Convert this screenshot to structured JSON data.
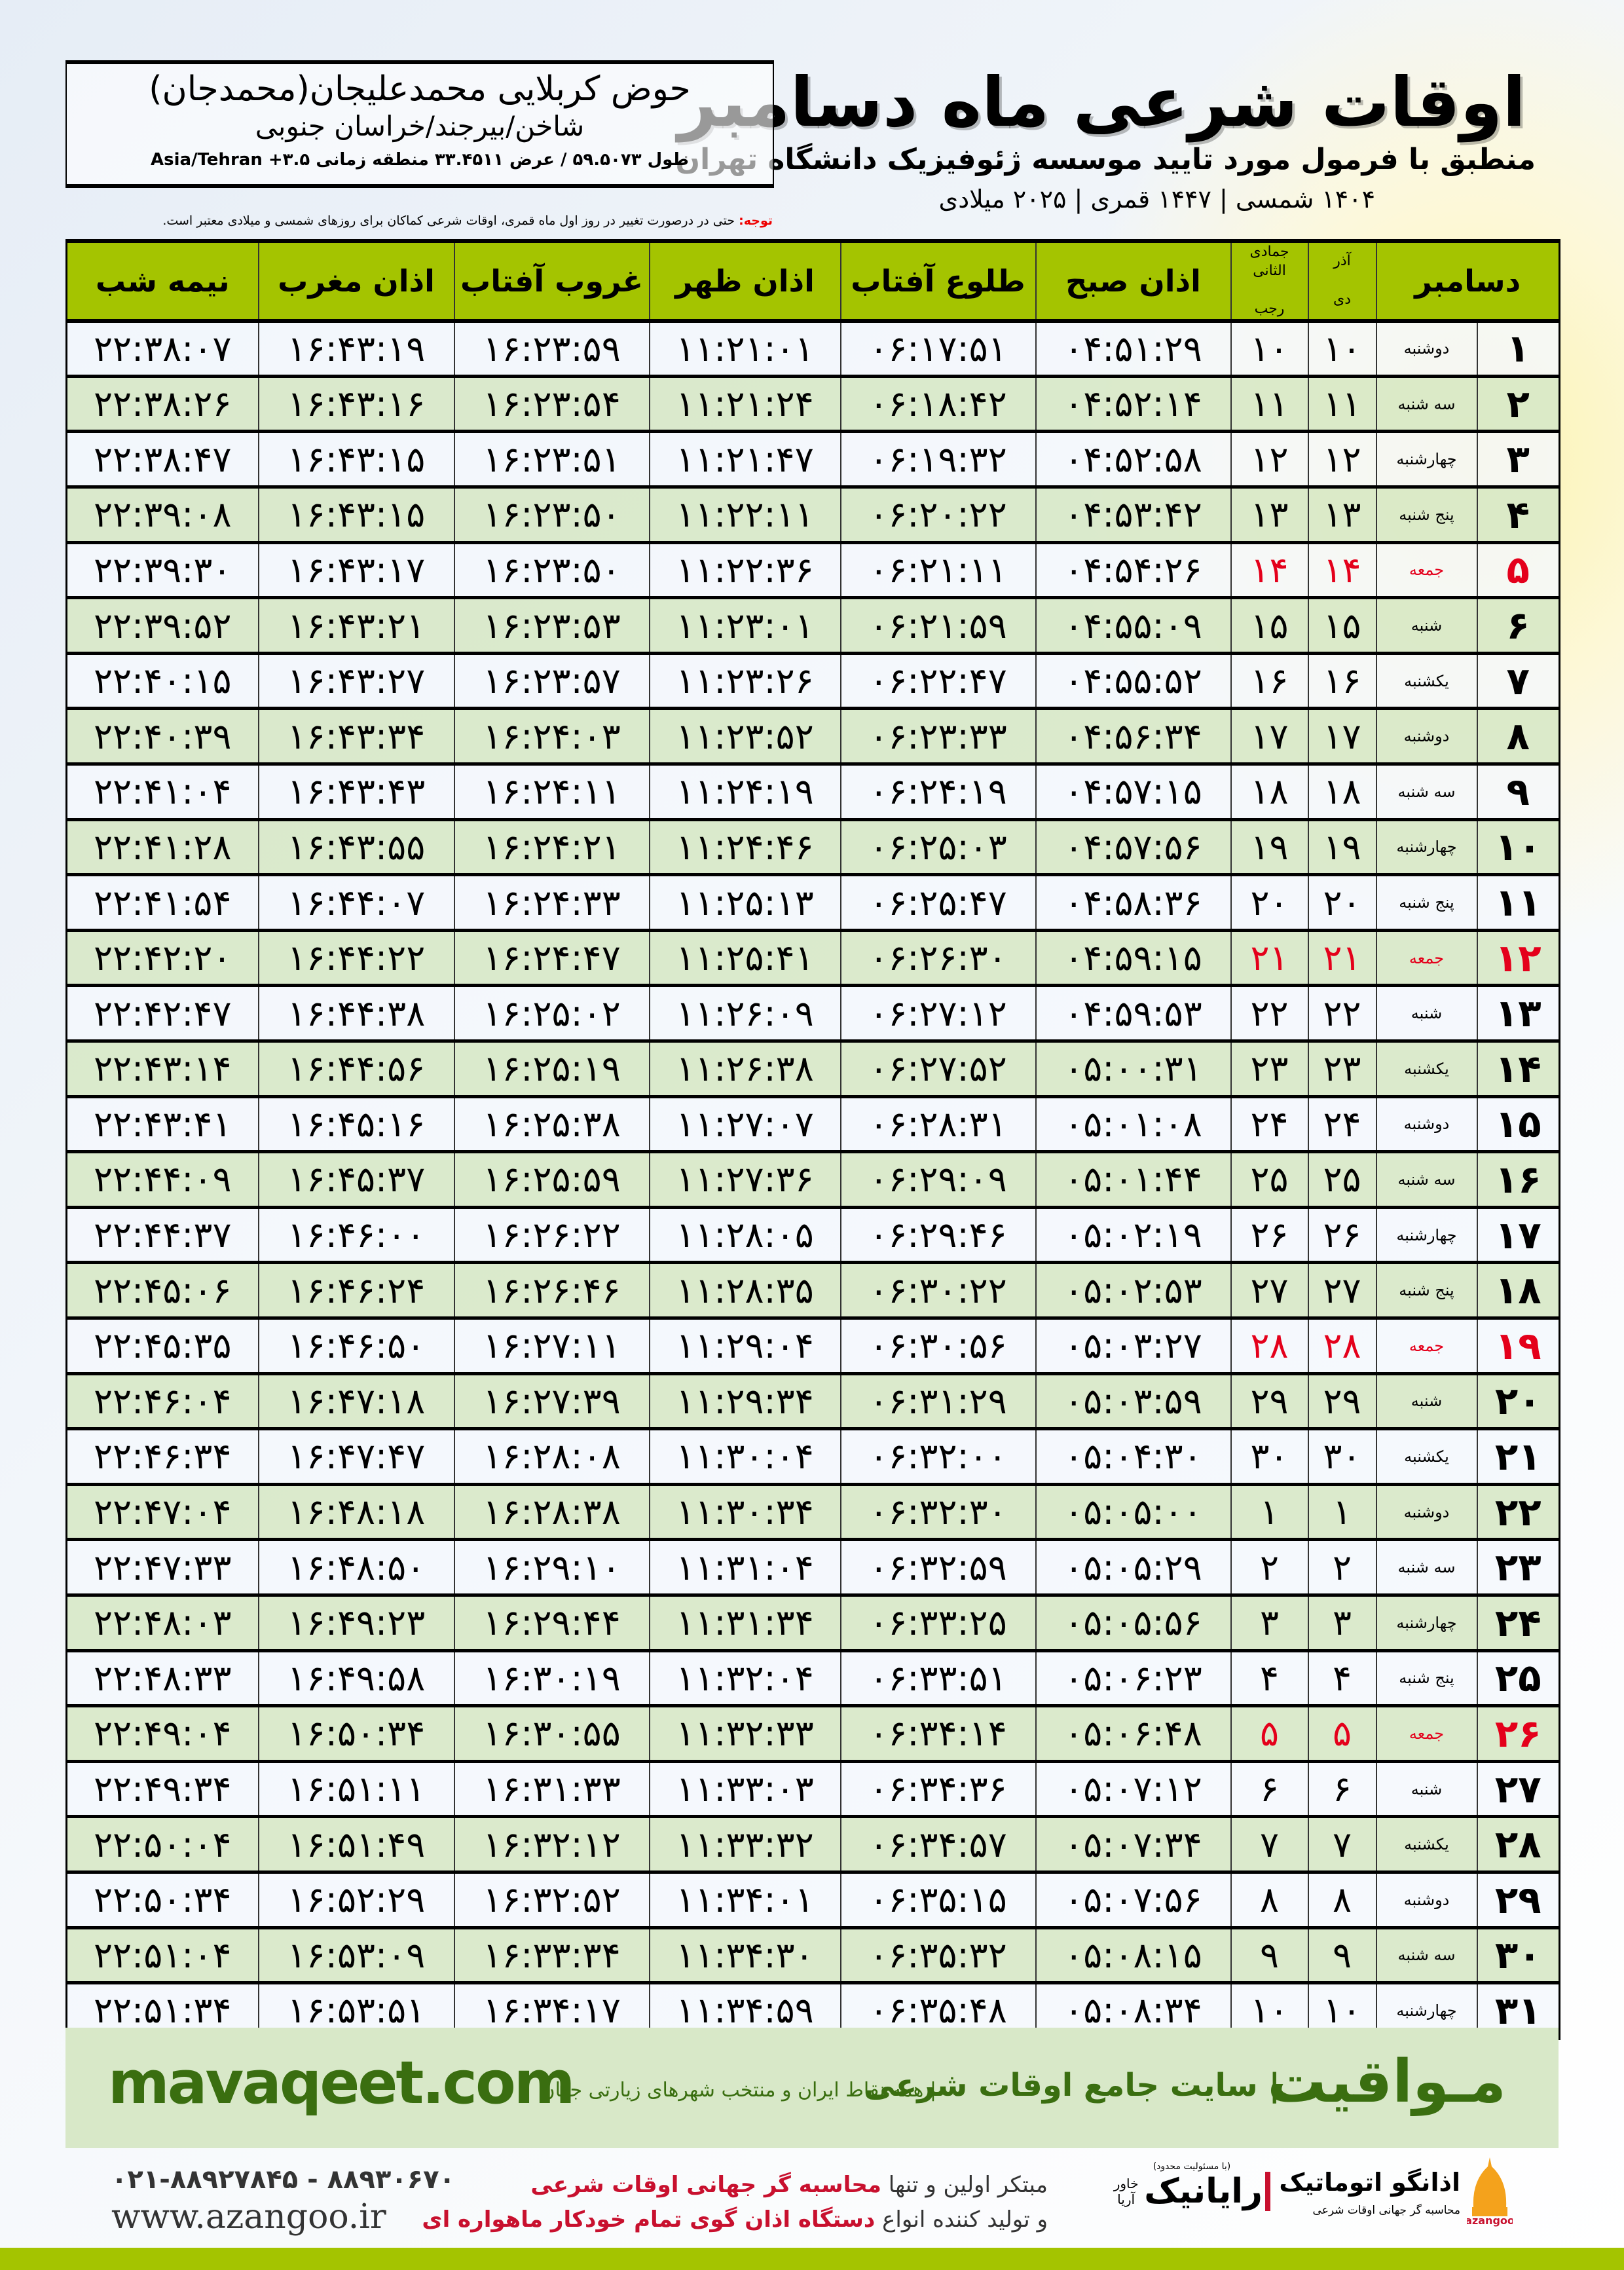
{
  "header": {
    "title": "اوقات شرعی ماه دسامبر",
    "subtitle": "منطبق با فرمول مورد تایید موسسه ژئوفیزیک دانشگاه تهران",
    "years": "۱۴۰۴ شمسی | ۱۴۴۷ قمری | ۲۰۲۵ میلادی"
  },
  "location": {
    "name": "حوض کربلایی محمدعلیجان(محمدجان)",
    "path": "شاخن/بیرجند/خراسان جنوبی",
    "coords": "طول ۵۹.۵۰۷۳ / عرض ۳۳.۴۵۱۱ منطقه زمانی ۳.۵+ Asia/Tehran"
  },
  "note": {
    "label": "توجه:",
    "text": " حتی در درصورت تغییر در روز اول ماه قمری، اوقات شرعی کماکان برای روزهای شمسی و میلادی معتبر است."
  },
  "table": {
    "headers": {
      "month": "دسامبر",
      "shamsi_top": "آذر",
      "shamsi_bottom": "دی",
      "qamari_top": "جمادی الثانی",
      "qamari_bottom": "رجب",
      "fajr": "اذان صبح",
      "sunrise": "طلوع آفتاب",
      "dhuhr": "اذان ظهر",
      "sunset": "غروب آفتاب",
      "maghrib": "اذان مغرب",
      "midnight": "نیمه شب"
    },
    "holiday_color": "#e4001b",
    "rows": [
      [
        "۱",
        "دوشنبه",
        "۱۰",
        "۱۰",
        "۰۴:۵۱:۲۹",
        "۰۶:۱۷:۵۱",
        "۱۱:۲۱:۰۱",
        "۱۶:۲۳:۵۹",
        "۱۶:۴۳:۱۹",
        "۲۲:۳۸:۰۷"
      ],
      [
        "۲",
        "سه شنبه",
        "۱۱",
        "۱۱",
        "۰۴:۵۲:۱۴",
        "۰۶:۱۸:۴۲",
        "۱۱:۲۱:۲۴",
        "۱۶:۲۳:۵۴",
        "۱۶:۴۳:۱۶",
        "۲۲:۳۸:۲۶"
      ],
      [
        "۳",
        "چهارشنبه",
        "۱۲",
        "۱۲",
        "۰۴:۵۲:۵۸",
        "۰۶:۱۹:۳۲",
        "۱۱:۲۱:۴۷",
        "۱۶:۲۳:۵۱",
        "۱۶:۴۳:۱۵",
        "۲۲:۳۸:۴۷"
      ],
      [
        "۴",
        "پنج شنبه",
        "۱۳",
        "۱۳",
        "۰۴:۵۳:۴۲",
        "۰۶:۲۰:۲۲",
        "۱۱:۲۲:۱۱",
        "۱۶:۲۳:۵۰",
        "۱۶:۴۳:۱۵",
        "۲۲:۳۹:۰۸"
      ],
      [
        "۵",
        "جمعه",
        "۱۴",
        "۱۴",
        "۰۴:۵۴:۲۶",
        "۰۶:۲۱:۱۱",
        "۱۱:۲۲:۳۶",
        "۱۶:۲۳:۵۰",
        "۱۶:۴۳:۱۷",
        "۲۲:۳۹:۳۰"
      ],
      [
        "۶",
        "شنبه",
        "۱۵",
        "۱۵",
        "۰۴:۵۵:۰۹",
        "۰۶:۲۱:۵۹",
        "۱۱:۲۳:۰۱",
        "۱۶:۲۳:۵۳",
        "۱۶:۴۳:۲۱",
        "۲۲:۳۹:۵۲"
      ],
      [
        "۷",
        "یکشنبه",
        "۱۶",
        "۱۶",
        "۰۴:۵۵:۵۲",
        "۰۶:۲۲:۴۷",
        "۱۱:۲۳:۲۶",
        "۱۶:۲۳:۵۷",
        "۱۶:۴۳:۲۷",
        "۲۲:۴۰:۱۵"
      ],
      [
        "۸",
        "دوشنبه",
        "۱۷",
        "۱۷",
        "۰۴:۵۶:۳۴",
        "۰۶:۲۳:۳۳",
        "۱۱:۲۳:۵۲",
        "۱۶:۲۴:۰۳",
        "۱۶:۴۳:۳۴",
        "۲۲:۴۰:۳۹"
      ],
      [
        "۹",
        "سه شنبه",
        "۱۸",
        "۱۸",
        "۰۴:۵۷:۱۵",
        "۰۶:۲۴:۱۹",
        "۱۱:۲۴:۱۹",
        "۱۶:۲۴:۱۱",
        "۱۶:۴۳:۴۳",
        "۲۲:۴۱:۰۴"
      ],
      [
        "۱۰",
        "چهارشنبه",
        "۱۹",
        "۱۹",
        "۰۴:۵۷:۵۶",
        "۰۶:۲۵:۰۳",
        "۱۱:۲۴:۴۶",
        "۱۶:۲۴:۲۱",
        "۱۶:۴۳:۵۵",
        "۲۲:۴۱:۲۸"
      ],
      [
        "۱۱",
        "پنج شنبه",
        "۲۰",
        "۲۰",
        "۰۴:۵۸:۳۶",
        "۰۶:۲۵:۴۷",
        "۱۱:۲۵:۱۳",
        "۱۶:۲۴:۳۳",
        "۱۶:۴۴:۰۷",
        "۲۲:۴۱:۵۴"
      ],
      [
        "۱۲",
        "جمعه",
        "۲۱",
        "۲۱",
        "۰۴:۵۹:۱۵",
        "۰۶:۲۶:۳۰",
        "۱۱:۲۵:۴۱",
        "۱۶:۲۴:۴۷",
        "۱۶:۴۴:۲۲",
        "۲۲:۴۲:۲۰"
      ],
      [
        "۱۳",
        "شنبه",
        "۲۲",
        "۲۲",
        "۰۴:۵۹:۵۳",
        "۰۶:۲۷:۱۲",
        "۱۱:۲۶:۰۹",
        "۱۶:۲۵:۰۲",
        "۱۶:۴۴:۳۸",
        "۲۲:۴۲:۴۷"
      ],
      [
        "۱۴",
        "یکشنبه",
        "۲۳",
        "۲۳",
        "۰۵:۰۰:۳۱",
        "۰۶:۲۷:۵۲",
        "۱۱:۲۶:۳۸",
        "۱۶:۲۵:۱۹",
        "۱۶:۴۴:۵۶",
        "۲۲:۴۳:۱۴"
      ],
      [
        "۱۵",
        "دوشنبه",
        "۲۴",
        "۲۴",
        "۰۵:۰۱:۰۸",
        "۰۶:۲۸:۳۱",
        "۱۱:۲۷:۰۷",
        "۱۶:۲۵:۳۸",
        "۱۶:۴۵:۱۶",
        "۲۲:۴۳:۴۱"
      ],
      [
        "۱۶",
        "سه شنبه",
        "۲۵",
        "۲۵",
        "۰۵:۰۱:۴۴",
        "۰۶:۲۹:۰۹",
        "۱۱:۲۷:۳۶",
        "۱۶:۲۵:۵۹",
        "۱۶:۴۵:۳۷",
        "۲۲:۴۴:۰۹"
      ],
      [
        "۱۷",
        "چهارشنبه",
        "۲۶",
        "۲۶",
        "۰۵:۰۲:۱۹",
        "۰۶:۲۹:۴۶",
        "۱۱:۲۸:۰۵",
        "۱۶:۲۶:۲۲",
        "۱۶:۴۶:۰۰",
        "۲۲:۴۴:۳۷"
      ],
      [
        "۱۸",
        "پنج شنبه",
        "۲۷",
        "۲۷",
        "۰۵:۰۲:۵۳",
        "۰۶:۳۰:۲۲",
        "۱۱:۲۸:۳۵",
        "۱۶:۲۶:۴۶",
        "۱۶:۴۶:۲۴",
        "۲۲:۴۵:۰۶"
      ],
      [
        "۱۹",
        "جمعه",
        "۲۸",
        "۲۸",
        "۰۵:۰۳:۲۷",
        "۰۶:۳۰:۵۶",
        "۱۱:۲۹:۰۴",
        "۱۶:۲۷:۱۱",
        "۱۶:۴۶:۵۰",
        "۲۲:۴۵:۳۵"
      ],
      [
        "۲۰",
        "شنبه",
        "۲۹",
        "۲۹",
        "۰۵:۰۳:۵۹",
        "۰۶:۳۱:۲۹",
        "۱۱:۲۹:۳۴",
        "۱۶:۲۷:۳۹",
        "۱۶:۴۷:۱۸",
        "۲۲:۴۶:۰۴"
      ],
      [
        "۲۱",
        "یکشنبه",
        "۳۰",
        "۳۰",
        "۰۵:۰۴:۳۰",
        "۰۶:۳۲:۰۰",
        "۱۱:۳۰:۰۴",
        "۱۶:۲۸:۰۸",
        "۱۶:۴۷:۴۷",
        "۲۲:۴۶:۳۴"
      ],
      [
        "۲۲",
        "دوشنبه",
        "۱",
        "۱",
        "۰۵:۰۵:۰۰",
        "۰۶:۳۲:۳۰",
        "۱۱:۳۰:۳۴",
        "۱۶:۲۸:۳۸",
        "۱۶:۴۸:۱۸",
        "۲۲:۴۷:۰۴"
      ],
      [
        "۲۳",
        "سه شنبه",
        "۲",
        "۲",
        "۰۵:۰۵:۲۹",
        "۰۶:۳۲:۵۹",
        "۱۱:۳۱:۰۴",
        "۱۶:۲۹:۱۰",
        "۱۶:۴۸:۵۰",
        "۲۲:۴۷:۳۳"
      ],
      [
        "۲۴",
        "چهارشنبه",
        "۳",
        "۳",
        "۰۵:۰۵:۵۶",
        "۰۶:۳۳:۲۵",
        "۱۱:۳۱:۳۴",
        "۱۶:۲۹:۴۴",
        "۱۶:۴۹:۲۳",
        "۲۲:۴۸:۰۳"
      ],
      [
        "۲۵",
        "پنج شنبه",
        "۴",
        "۴",
        "۰۵:۰۶:۲۳",
        "۰۶:۳۳:۵۱",
        "۱۱:۳۲:۰۴",
        "۱۶:۳۰:۱۹",
        "۱۶:۴۹:۵۸",
        "۲۲:۴۸:۳۳"
      ],
      [
        "۲۶",
        "جمعه",
        "۵",
        "۵",
        "۰۵:۰۶:۴۸",
        "۰۶:۳۴:۱۴",
        "۱۱:۳۲:۳۳",
        "۱۶:۳۰:۵۵",
        "۱۶:۵۰:۳۴",
        "۲۲:۴۹:۰۴"
      ],
      [
        "۲۷",
        "شنبه",
        "۶",
        "۶",
        "۰۵:۰۷:۱۲",
        "۰۶:۳۴:۳۶",
        "۱۱:۳۳:۰۳",
        "۱۶:۳۱:۳۳",
        "۱۶:۵۱:۱۱",
        "۲۲:۴۹:۳۴"
      ],
      [
        "۲۸",
        "یکشنبه",
        "۷",
        "۷",
        "۰۵:۰۷:۳۴",
        "۰۶:۳۴:۵۷",
        "۱۱:۳۳:۳۲",
        "۱۶:۳۲:۱۲",
        "۱۶:۵۱:۴۹",
        "۲۲:۵۰:۰۴"
      ],
      [
        "۲۹",
        "دوشنبه",
        "۸",
        "۸",
        "۰۵:۰۷:۵۶",
        "۰۶:۳۵:۱۵",
        "۱۱:۳۴:۰۱",
        "۱۶:۳۲:۵۲",
        "۱۶:۵۲:۲۹",
        "۲۲:۵۰:۳۴"
      ],
      [
        "۳۰",
        "سه شنبه",
        "۹",
        "۹",
        "۰۵:۰۸:۱۵",
        "۰۶:۳۵:۳۲",
        "۱۱:۳۴:۳۰",
        "۱۶:۳۳:۳۴",
        "۱۶:۵۳:۰۹",
        "۲۲:۵۱:۰۴"
      ],
      [
        "۳۱",
        "چهارشنبه",
        "۱۰",
        "۱۰",
        "۰۵:۰۸:۳۴",
        "۰۶:۳۵:۴۸",
        "۱۱:۳۴:۵۹",
        "۱۶:۳۴:۱۷",
        "۱۶:۵۳:۵۱",
        "۲۲:۵۱:۳۴"
      ]
    ]
  },
  "footer": {
    "brand": "مـواقیت",
    "tagline": "| سایت جامع اوقات شرعی",
    "tagline2": "| همه نقاط ایران و منتخب شهرهای زیارتی جهان",
    "url": "mavaqeet.com",
    "phone": "۰۲۱-۸۸۹۲۷۸۴۵ - ۸۸۹۳۰۶۷۰",
    "website": "www.azangoo.ir",
    "slogan1a": "مبتکر اولین و تنها ",
    "slogan1b": "محاسبه گر جهانی اوقات شرعی",
    "slogan2a": "و تولید کننده انواع ",
    "slogan2b": "دستگاه اذان گوی تمام خودکار ماهواره ای",
    "rayanik": "رایانیک",
    "rayanik_sub": "خاور آریا",
    "rayanik_note": "(با مسئولیت محدود)",
    "azangoo": "اذانگو اتوماتیک",
    "azangoo_latin": "azangoo",
    "azangoo_sub": "محاسبه گر جهانی اوقات شرعی"
  },
  "colors": {
    "header_green": "#a4c400",
    "row_green": "#d8e8c8",
    "brand_green": "#3a6e10"
  }
}
